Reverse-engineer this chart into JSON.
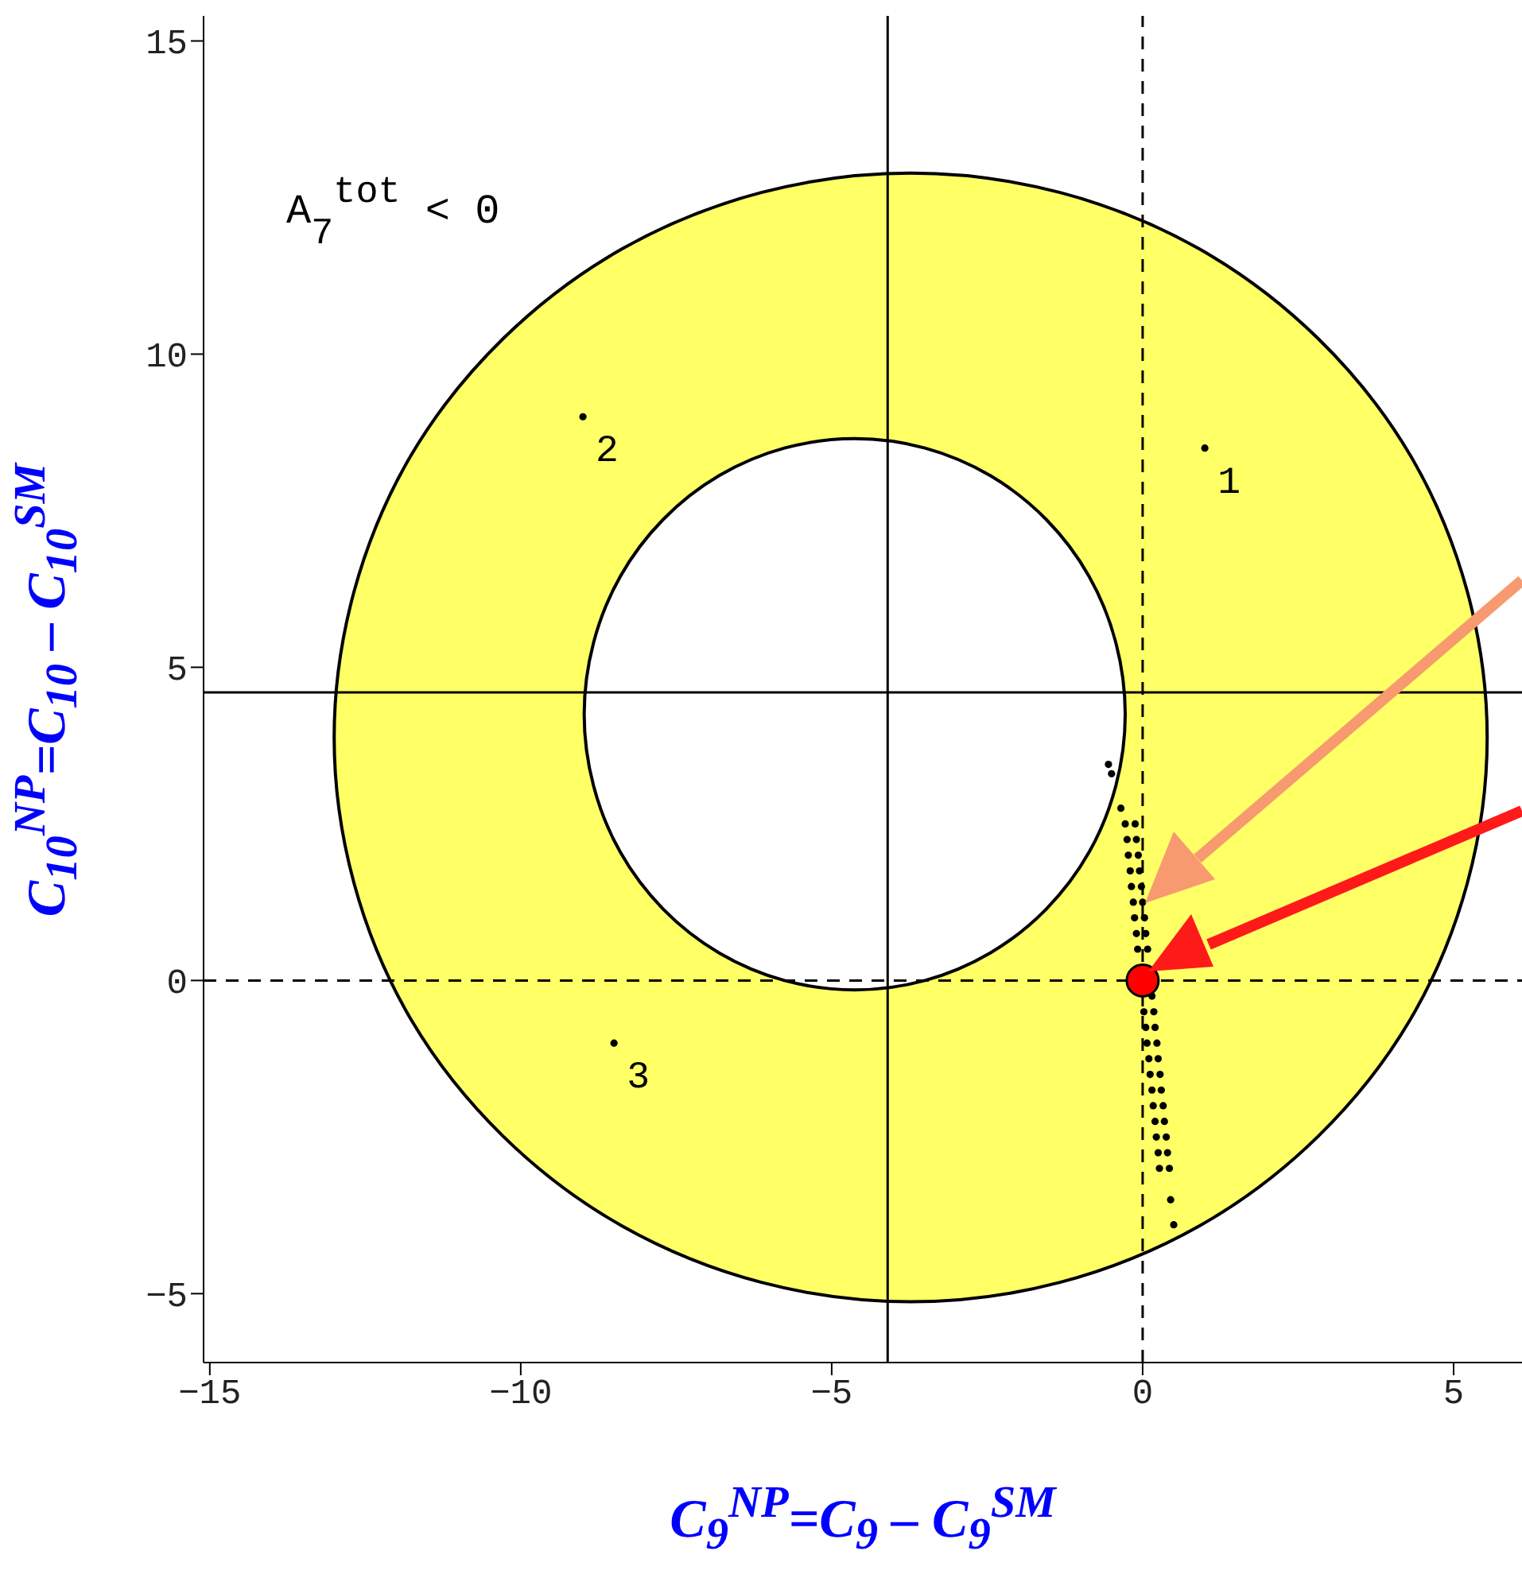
{
  "chart_data": {
    "type": "scatter",
    "xlabel": "C$_{9}$$^{NP}$=C$_{9}$ – C$_{9}$$^{SM}$",
    "ylabel": "C$_{10}$$^{NP}$=C$_{10}$ – C$_{10}$$^{SM}$",
    "annotations": [
      "A$_{7}$$^{tot}$ < 0",
      {
        "text": "1",
        "x": 1.0,
        "y": 8.5
      },
      {
        "text": "2",
        "x": -9.0,
        "y": 9.0
      },
      {
        "text": "3",
        "x": -8.5,
        "y": -1.0
      }
    ],
    "xlim": [
      -15.1,
      6.1
    ],
    "ylim": [
      -6.1,
      15.4
    ],
    "xticks": [
      -15,
      -10,
      -5,
      0,
      5
    ],
    "yticks": [
      -5,
      0,
      5,
      10,
      15
    ],
    "grid": false,
    "legend": false,
    "ref_lines": [
      {
        "axis": "x",
        "value": -4.1,
        "line_style": "solid",
        "color": "#000000"
      },
      {
        "axis": "y",
        "value": 4.6,
        "line_style": "solid",
        "color": "#000000"
      },
      {
        "axis": "x",
        "value": 0,
        "line_style": "dashed",
        "color": "#000000"
      },
      {
        "axis": "y",
        "value": 0,
        "line_style": "dashed",
        "color": "#000000"
      }
    ],
    "series": [
      {
        "type": "area",
        "color": "#ffff66",
        "x": [
          5.54,
          5.22,
          4.3,
          2.82,
          0.91,
          -1.33,
          -3.73,
          -6.13,
          -8.37,
          -10.28,
          -11.76,
          -12.68,
          -13.0,
          -12.68,
          -11.76,
          -10.28,
          -8.37,
          -6.13,
          -3.73,
          -1.33,
          0.91,
          2.82,
          4.3,
          5.22
        ],
        "values": [
          3.88,
          6.21,
          8.39,
          10.25,
          11.68,
          12.58,
          12.89,
          12.58,
          11.68,
          10.25,
          8.39,
          6.21,
          3.88,
          1.55,
          -0.63,
          -2.49,
          -3.92,
          -4.82,
          -5.13,
          -4.82,
          -3.92,
          -2.49,
          -0.63,
          1.55
        ]
      },
      {
        "type": "area",
        "color": "#ffffff",
        "x": [
          -0.28,
          -0.43,
          -0.86,
          -1.55,
          -2.45,
          -3.5,
          -4.63,
          -5.76,
          -6.81,
          -7.71,
          -8.4,
          -8.83,
          -8.98,
          -8.83,
          -8.4,
          -7.71,
          -6.81,
          -5.76,
          -4.63,
          -3.5,
          -2.45,
          -1.55,
          -0.86,
          -0.43
        ],
        "values": [
          4.25,
          5.39,
          6.45,
          7.36,
          8.06,
          8.5,
          8.65,
          8.5,
          8.06,
          7.36,
          6.45,
          5.39,
          4.25,
          3.11,
          2.05,
          1.14,
          0.44,
          0.0,
          -0.15,
          0.0,
          0.44,
          1.14,
          2.05,
          3.11
        ]
      },
      {
        "color": "#000000",
        "marker": "circle",
        "x": [
          1.0,
          -9.0,
          -8.5
        ],
        "values": [
          8.5,
          9.0,
          -1.0
        ]
      },
      {
        "color": "#000000",
        "marker": "circle",
        "x": [
          -0.55,
          -0.5,
          -0.35,
          -0.28,
          -0.12,
          -0.25,
          -0.1,
          -0.23,
          -0.07,
          -0.2,
          -0.05,
          -0.18,
          -0.02,
          -0.15,
          0.0,
          -0.13,
          0.03,
          -0.1,
          0.05,
          -0.08,
          0.08,
          0.15,
          0.02,
          0.18,
          0.05,
          0.2,
          0.07,
          0.23,
          0.1,
          0.25,
          0.12,
          0.28,
          0.15,
          0.3,
          0.17,
          0.33,
          0.2,
          0.35,
          0.22,
          0.38,
          0.25,
          0.4,
          0.27,
          0.43,
          0.45,
          0.5
        ],
        "values": [
          3.45,
          3.3,
          2.75,
          2.5,
          2.5,
          2.25,
          2.25,
          2.0,
          2.0,
          1.75,
          1.75,
          1.5,
          1.5,
          1.25,
          1.25,
          1.0,
          1.0,
          0.75,
          0.75,
          0.5,
          0.5,
          -0.25,
          -0.5,
          -0.5,
          -0.75,
          -0.75,
          -1.0,
          -1.0,
          -1.25,
          -1.25,
          -1.5,
          -1.5,
          -1.75,
          -1.75,
          -2.0,
          -2.0,
          -2.25,
          -2.25,
          -2.5,
          -2.5,
          -2.75,
          -2.75,
          -3.0,
          -3.0,
          -3.5,
          -3.9
        ]
      },
      {
        "type": "bubble",
        "color": "#ff0000",
        "marker": "circle",
        "x": [
          0
        ],
        "values": [
          0
        ],
        "sizes": [
          1
        ]
      }
    ]
  }
}
